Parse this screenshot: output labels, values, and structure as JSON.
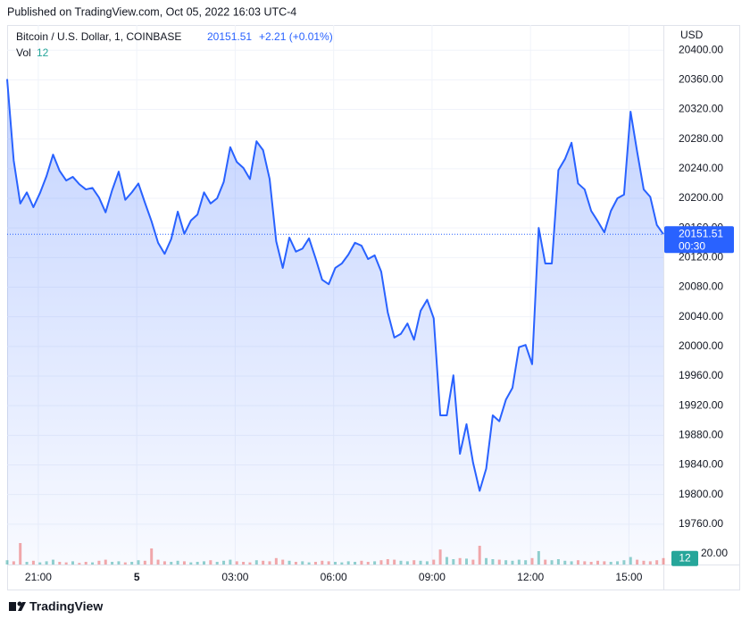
{
  "header": {
    "published": "Published on TradingView.com, Oct 05, 2022 16:03 UTC-4"
  },
  "footer": {
    "brand": "TradingView"
  },
  "chart_data": {
    "type": "area",
    "title": "Bitcoin / U.S. Dollar, 1, COINBASE",
    "change_label": "+2.21 (+0.01%)",
    "currency": "USD",
    "countdown": "00:30",
    "x": [
      -3.95,
      -3.75,
      -3.55,
      -3.35,
      -3.15,
      -2.95,
      -2.75,
      -2.55,
      -2.35,
      -2.15,
      -1.95,
      -1.75,
      -1.55,
      -1.35,
      -1.15,
      -0.95,
      -0.75,
      -0.55,
      -0.35,
      -0.15,
      0.05,
      0.25,
      0.45,
      0.65,
      0.85,
      1.05,
      1.25,
      1.45,
      1.65,
      1.85,
      2.05,
      2.25,
      2.45,
      2.65,
      2.85,
      3.05,
      3.25,
      3.45,
      3.65,
      3.85,
      4.05,
      4.25,
      4.45,
      4.65,
      4.85,
      5.05,
      5.25,
      5.45,
      5.65,
      5.85,
      6.05,
      6.25,
      6.45,
      6.65,
      6.85,
      7.05,
      7.25,
      7.45,
      7.65,
      7.85,
      8.05,
      8.25,
      8.45,
      8.65,
      8.85,
      9.05,
      9.25,
      9.45,
      9.65,
      9.85,
      10.05,
      10.25,
      10.45,
      10.65,
      10.85,
      11.05,
      11.25,
      11.45,
      11.65,
      11.85,
      12.05,
      12.25,
      12.45,
      12.65,
      12.85,
      13.05,
      13.25,
      13.45,
      13.65,
      13.85,
      14.05,
      14.25,
      14.45,
      14.65,
      14.85,
      15.05,
      15.25,
      15.45,
      15.65,
      15.85,
      16.05
    ],
    "series": [
      {
        "name": "Bitcoin / U.S. Dollar",
        "color": "#2962ff",
        "values": [
          20361,
          20251,
          20193,
          20208,
          20188,
          20207,
          20230,
          20259,
          20237,
          20224,
          20229,
          20219,
          20212,
          20214,
          20201,
          20181,
          20211,
          20236,
          20198,
          20208,
          20220,
          20194,
          20169,
          20140,
          20125,
          20145,
          20182,
          20152,
          20170,
          20178,
          20208,
          20193,
          20200,
          20222,
          20269,
          20249,
          20241,
          20226,
          20277,
          20265,
          20226,
          20142,
          20106,
          20147,
          20128,
          20132,
          20146,
          20119,
          20090,
          20084,
          20106,
          20112,
          20124,
          20140,
          20136,
          20118,
          20123,
          20101,
          20046,
          20012,
          20017,
          20031,
          20009,
          20048,
          20063,
          20038,
          19907,
          19907,
          19961,
          19855,
          19895,
          19843,
          19805,
          19835,
          19907,
          19899,
          19928,
          19944,
          19999,
          20002,
          19976,
          20160,
          20112,
          20112,
          20238,
          20253,
          20275,
          20220,
          20212,
          20183,
          20169,
          20154,
          20183,
          20200,
          20205,
          20317,
          20263,
          20212,
          20202,
          20164,
          20151.51
        ],
        "value_labels": {
          "100": "20151.51"
        }
      }
    ],
    "volume": {
      "name": "Vol",
      "up_color": "#26a69a",
      "down_color": "#ef5350",
      "values": [
        8,
        6,
        40,
        5,
        7,
        4,
        6,
        9,
        5,
        4,
        6,
        3,
        5,
        4,
        7,
        9,
        5,
        6,
        4,
        5,
        8,
        7,
        30,
        9,
        6,
        5,
        7,
        6,
        4,
        5,
        6,
        8,
        5,
        7,
        9,
        6,
        5,
        4,
        8,
        7,
        6,
        12,
        9,
        7,
        5,
        6,
        4,
        5,
        7,
        6,
        5,
        4,
        6,
        5,
        7,
        5,
        6,
        8,
        10,
        9,
        7,
        6,
        8,
        7,
        6,
        9,
        28,
        14,
        10,
        12,
        11,
        9,
        35,
        12,
        10,
        9,
        8,
        7,
        9,
        8,
        12,
        25,
        9,
        8,
        10,
        7,
        6,
        8,
        6,
        5,
        7,
        6,
        5,
        6,
        8,
        14,
        9,
        7,
        6,
        8,
        12
      ],
      "ylim": [
        0,
        45
      ],
      "yticks": [
        {
          "value": 20,
          "label": "20.00"
        }
      ]
    },
    "xlim": [
      -3.95,
      16.05
    ],
    "xticks": [
      {
        "value": -3,
        "label": "21:00"
      },
      {
        "value": 0,
        "label": "5"
      },
      {
        "value": 3,
        "label": "03:00"
      },
      {
        "value": 6,
        "label": "06:00"
      },
      {
        "value": 9,
        "label": "09:00"
      },
      {
        "value": 12,
        "label": "12:00"
      },
      {
        "value": 15,
        "label": "15:00"
      }
    ],
    "ylim": [
      19720,
      20434
    ],
    "yticks": [
      {
        "value": 20400,
        "label": "20400.00"
      },
      {
        "value": 20360,
        "label": "20360.00"
      },
      {
        "value": 20320,
        "label": "20320.00"
      },
      {
        "value": 20280,
        "label": "20280.00"
      },
      {
        "value": 20240,
        "label": "20240.00"
      },
      {
        "value": 20200,
        "label": "20200.00"
      },
      {
        "value": 20160,
        "label": "20160.00"
      },
      {
        "value": 20120,
        "label": "20120.00"
      },
      {
        "value": 20080,
        "label": "20080.00"
      },
      {
        "value": 20040,
        "label": "20040.00"
      },
      {
        "value": 20000,
        "label": "20000.00"
      },
      {
        "value": 19960,
        "label": "19960.00"
      },
      {
        "value": 19920,
        "label": "19920.00"
      },
      {
        "value": 19880,
        "label": "19880.00"
      },
      {
        "value": 19840,
        "label": "19840.00"
      },
      {
        "value": 19800,
        "label": "19800.00"
      },
      {
        "value": 19760,
        "label": "19760.00"
      }
    ],
    "grid": true
  }
}
